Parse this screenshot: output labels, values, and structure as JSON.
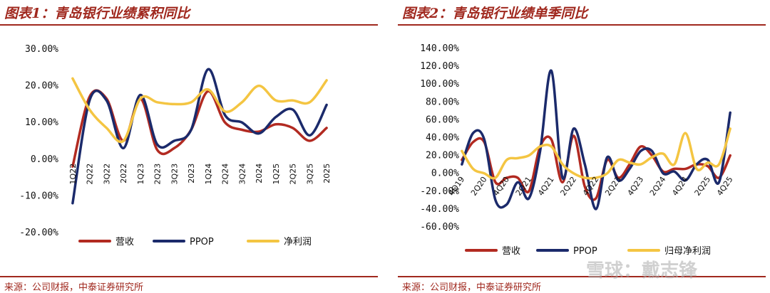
{
  "colors": {
    "revenue": "#b22a21",
    "ppop": "#1b2a6b",
    "profit": "#f4c542",
    "title": "#a0281e"
  },
  "chart_data": [
    {
      "type": "line",
      "title": "图表1：青岛银行业绩累积同比",
      "source": "来源：公司财报，中泰证券研究所",
      "ylim": [
        -0.2,
        0.3
      ],
      "yticks": [
        "-20.00%",
        "-10.00%",
        "0.00%",
        "10.00%",
        "20.00%",
        "30.00%"
      ],
      "ytick_values": [
        -0.2,
        -0.1,
        0.0,
        0.1,
        0.2,
        0.3
      ],
      "categories": [
        "1Q22",
        "2Q22",
        "3Q22",
        "2022",
        "1Q23",
        "2Q23",
        "3Q23",
        "2023",
        "1Q24",
        "2Q24",
        "3Q24",
        "2024",
        "1Q25",
        "2Q25",
        "3Q25",
        "2025"
      ],
      "series": [
        {
          "name": "营收",
          "color_key": "revenue",
          "values": [
            -0.02,
            0.17,
            0.165,
            0.05,
            0.165,
            0.025,
            0.03,
            0.08,
            0.185,
            0.1,
            0.08,
            0.075,
            0.095,
            0.085,
            0.05,
            0.085
          ]
        },
        {
          "name": "PPOP",
          "color_key": "ppop",
          "values": [
            -0.12,
            0.16,
            0.16,
            0.03,
            0.175,
            0.04,
            0.05,
            0.08,
            0.245,
            0.12,
            0.1,
            0.07,
            0.115,
            0.135,
            0.065,
            0.148
          ]
        },
        {
          "name": "净利润",
          "color_key": "profit",
          "values": [
            0.22,
            0.135,
            0.085,
            0.05,
            0.165,
            0.155,
            0.15,
            0.155,
            0.19,
            0.13,
            0.155,
            0.2,
            0.16,
            0.16,
            0.155,
            0.215
          ]
        }
      ]
    },
    {
      "type": "line",
      "title": "图表2：青岛银行业绩单季同比",
      "source": "来源：公司财报，中泰证券研究所",
      "ylim": [
        -0.6,
        1.4
      ],
      "yticks": [
        "-60.00%",
        "-40.00%",
        "-20.00%",
        "0.00%",
        "20.00%",
        "40.00%",
        "60.00%",
        "80.00%",
        "100.00%",
        "120.00%",
        "140.00%"
      ],
      "ytick_values": [
        -0.6,
        -0.4,
        -0.2,
        0.0,
        0.2,
        0.4,
        0.6,
        0.8,
        1.0,
        1.2,
        1.4
      ],
      "categories": [
        "4Q19",
        "1Q20",
        "2Q20",
        "3Q20",
        "4Q20",
        "1Q21",
        "2Q21",
        "3Q21",
        "4Q21",
        "1Q22",
        "2Q22",
        "3Q22",
        "4Q22",
        "1Q23",
        "2Q23",
        "3Q23",
        "4Q23",
        "1Q24",
        "2Q24",
        "3Q24",
        "4Q24",
        "1Q25",
        "2Q25",
        "3Q25",
        "4Q25"
      ],
      "visible_xticks": [
        "4Q19",
        "2Q20",
        "4Q20",
        "2Q21",
        "4Q21",
        "2Q22",
        "4Q22",
        "2Q23",
        "4Q23",
        "2Q24",
        "4Q24",
        "2Q25",
        "4Q25"
      ],
      "series": [
        {
          "name": "营收",
          "color_key": "revenue",
          "values": [
            0.15,
            0.35,
            0.35,
            -0.1,
            -0.05,
            -0.05,
            -0.2,
            0.3,
            0.38,
            -0.1,
            0.42,
            -0.15,
            -0.28,
            0.15,
            -0.05,
            0.1,
            0.3,
            0.2,
            0.02,
            0.05,
            0.05,
            0.1,
            0.08,
            -0.05,
            0.2
          ]
        },
        {
          "name": "PPOP",
          "color_key": "ppop",
          "values": [
            0.1,
            0.45,
            0.38,
            -0.3,
            -0.35,
            -0.1,
            -0.28,
            0.25,
            1.15,
            -0.05,
            0.5,
            0.1,
            -0.4,
            0.18,
            -0.08,
            0.05,
            0.25,
            0.25,
            0.0,
            0.02,
            -0.08,
            0.1,
            0.15,
            -0.1,
            0.68
          ]
        },
        {
          "name": "归母净利润",
          "color_key": "profit",
          "values": [
            0.25,
            0.05,
            0.0,
            -0.05,
            0.15,
            0.17,
            0.2,
            0.3,
            0.3,
            0.1,
            0.0,
            -0.05,
            -0.05,
            0.0,
            0.15,
            0.12,
            0.1,
            0.18,
            0.22,
            0.1,
            0.45,
            0.05,
            0.12,
            0.1,
            0.5
          ]
        }
      ]
    }
  ],
  "watermark": "雪球：戴志锋"
}
